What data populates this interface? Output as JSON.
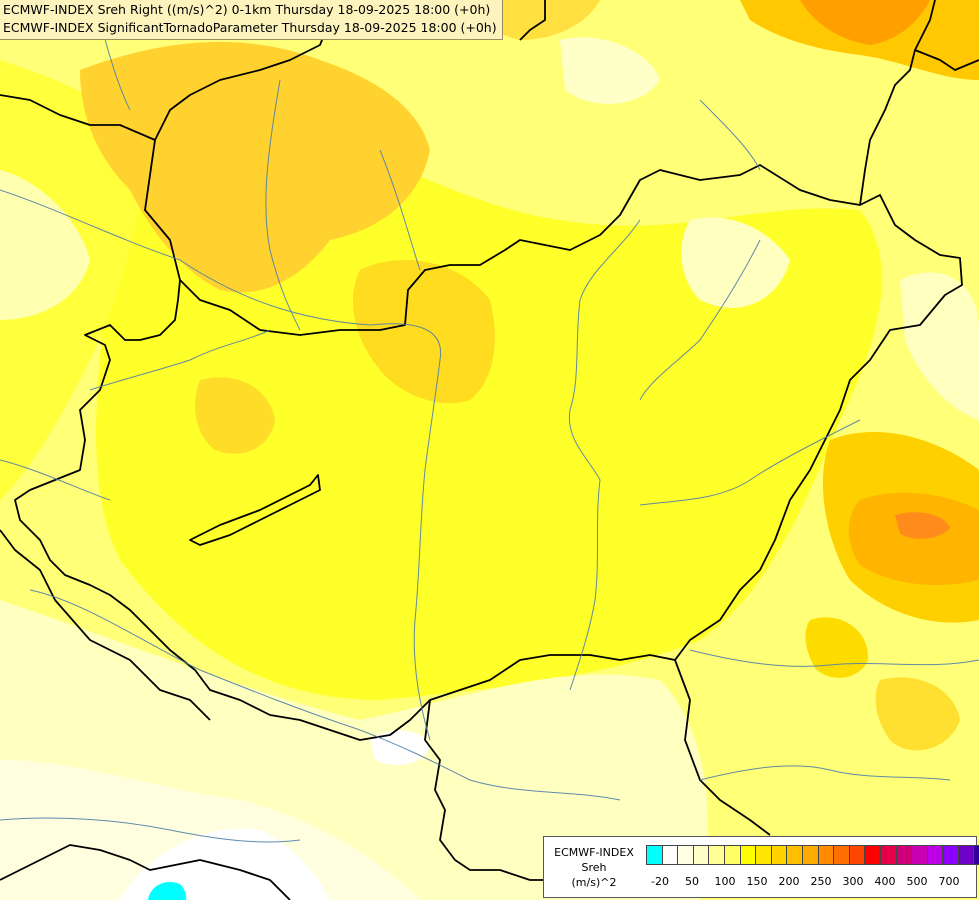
{
  "header": {
    "line1": "ECMWF-INDEX Sreh Right ((m/s)^2) 0-1km Thursday 18-09-2025 18:00 (+0h)",
    "line2": "ECMWF-INDEX SignificantTornadoParameter Thursday 18-09-2025 18:00 (+0h)"
  },
  "legend": {
    "title_line1": "ECMWF-INDEX",
    "title_line2": "Sreh",
    "title_line3": "(m/s)^2",
    "colors": [
      "#00ffff",
      "#ffffff",
      "#ffffe6",
      "#ffffc8",
      "#ffff96",
      "#ffff64",
      "#ffff00",
      "#ffe600",
      "#ffd200",
      "#ffbe00",
      "#ffaa00",
      "#ff8c00",
      "#ff6e00",
      "#ff4600",
      "#ff0000",
      "#e6004b",
      "#cd0078",
      "#c800b4",
      "#be00e6",
      "#8c00ff",
      "#6e00c8",
      "#320096",
      "#000064"
    ],
    "ticks": [
      "-20",
      "50",
      "100",
      "150",
      "200",
      "250",
      "300",
      "400",
      "500",
      "700"
    ]
  },
  "map": {
    "background_color": "#ffff7a",
    "border_color": "#000000",
    "river_color": "#4f7ea8"
  }
}
